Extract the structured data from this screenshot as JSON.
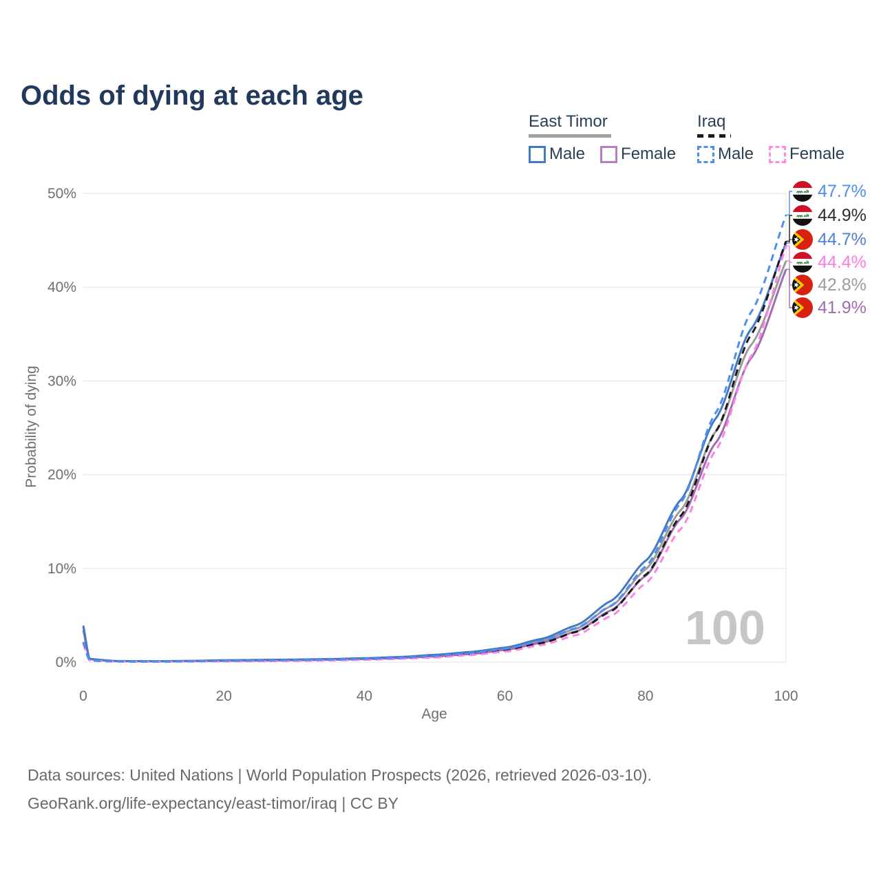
{
  "title": "Odds of dying at each age",
  "watermark_age": "100",
  "legend": {
    "groups": [
      {
        "name": "East Timor",
        "line_style": "solid",
        "underline_color": "#A0A0A0",
        "items": [
          {
            "label": "Male",
            "color": "#4479C4",
            "dash": false
          },
          {
            "label": "Female",
            "color": "#B77FC2",
            "dash": false
          }
        ]
      },
      {
        "name": "Iraq",
        "line_style": "dashed",
        "underline_color": "#1C1C1C",
        "items": [
          {
            "label": "Male",
            "color": "#4E8DF2",
            "dash": true
          },
          {
            "label": "Female",
            "color": "#FF8AE2",
            "dash": true
          }
        ]
      }
    ]
  },
  "yAxis": {
    "title": "Probability of dying",
    "ticks": [
      {
        "label": "0%",
        "value": 0
      },
      {
        "label": "10%",
        "value": 10
      },
      {
        "label": "20%",
        "value": 20
      },
      {
        "label": "30%",
        "value": 30
      },
      {
        "label": "40%",
        "value": 40
      },
      {
        "label": "50%",
        "value": 50
      }
    ]
  },
  "xAxis": {
    "title": "Age",
    "ticks": [
      {
        "label": "0",
        "value": 0
      },
      {
        "label": "20",
        "value": 20
      },
      {
        "label": "40",
        "value": 40
      },
      {
        "label": "60",
        "value": 60
      },
      {
        "label": "80",
        "value": 80
      },
      {
        "label": "100",
        "value": 100
      }
    ]
  },
  "end_labels": [
    {
      "value": "47.7%",
      "flag": "iraq",
      "color": "#4E8DF2",
      "series": "Iraq Male"
    },
    {
      "value": "44.9%",
      "flag": "iraq",
      "color": "#2D2D2D",
      "series": "Iraq Combined"
    },
    {
      "value": "44.7%",
      "flag": "east-timor",
      "color": "#4E81D4",
      "series": "East Timor Male"
    },
    {
      "value": "44.4%",
      "flag": "iraq",
      "color": "#FF7AE2",
      "series": "Iraq Female"
    },
    {
      "value": "42.8%",
      "flag": "east-timor",
      "color": "#9C9C9C",
      "series": "East Timor Combined"
    },
    {
      "value": "41.9%",
      "flag": "east-timor",
      "color": "#A16BB2",
      "series": "East Timor Female"
    }
  ],
  "footer": {
    "line1": "Data sources: United Nations | World Population Prospects (2026, retrieved 2026-03-10).",
    "line2": "GeoRank.org/life-expectancy/east-timor/iraq | CC BY"
  },
  "chart_data": {
    "type": "line",
    "title": "Odds of dying at each age",
    "xlabel": "Age",
    "ylabel": "Probability of dying",
    "unit": "%",
    "xlim": [
      0,
      100
    ],
    "ylim": [
      0,
      50
    ],
    "grid": "horizontal",
    "x": [
      0,
      1,
      5,
      10,
      15,
      20,
      25,
      30,
      35,
      40,
      45,
      50,
      55,
      60,
      65,
      70,
      75,
      80,
      85,
      90,
      95,
      100
    ],
    "series": [
      {
        "name": "East Timor Combined",
        "color": "#9C9C9C",
        "dash": false,
        "end_label": "42.8%",
        "values": [
          3.7,
          0.32,
          0.11,
          0.09,
          0.12,
          0.17,
          0.2,
          0.24,
          0.29,
          0.37,
          0.49,
          0.68,
          0.97,
          1.42,
          2.25,
          3.55,
          5.95,
          9.9,
          16.2,
          24.6,
          33.8,
          42.8
        ]
      },
      {
        "name": "East Timor Female",
        "color": "#A16BB2",
        "dash": false,
        "end_label": "41.9%",
        "values": [
          3.4,
          0.3,
          0.1,
          0.08,
          0.1,
          0.13,
          0.16,
          0.2,
          0.25,
          0.32,
          0.43,
          0.6,
          0.87,
          1.3,
          2.05,
          3.25,
          5.5,
          9.2,
          15.3,
          23.4,
          32.4,
          41.9
        ]
      },
      {
        "name": "East Timor Male",
        "color": "#4479C4",
        "dash": false,
        "end_label": "44.7%",
        "values": [
          3.9,
          0.35,
          0.12,
          0.1,
          0.14,
          0.2,
          0.24,
          0.28,
          0.33,
          0.42,
          0.55,
          0.78,
          1.08,
          1.55,
          2.45,
          3.9,
          6.5,
          10.8,
          17.3,
          26.0,
          35.5,
          44.7
        ]
      },
      {
        "name": "Iraq Combined",
        "color": "#1C1C1C",
        "dash": true,
        "end_label": "44.9%",
        "values": [
          2.05,
          0.17,
          0.065,
          0.055,
          0.075,
          0.11,
          0.14,
          0.18,
          0.23,
          0.3,
          0.41,
          0.58,
          0.85,
          1.27,
          2.0,
          3.2,
          5.4,
          9.3,
          15.6,
          24.6,
          34.9,
          44.9
        ]
      },
      {
        "name": "Iraq Female",
        "color": "#FF82E5",
        "dash": true,
        "end_label": "44.4%",
        "values": [
          1.95,
          0.16,
          0.06,
          0.05,
          0.06,
          0.08,
          0.1,
          0.13,
          0.18,
          0.25,
          0.35,
          0.5,
          0.75,
          1.12,
          1.8,
          2.85,
          4.9,
          8.4,
          14.2,
          22.6,
          32.6,
          44.4
        ]
      },
      {
        "name": "Iraq Male",
        "color": "#4E8DF2",
        "dash": true,
        "end_label": "47.7%",
        "values": [
          2.15,
          0.18,
          0.07,
          0.06,
          0.09,
          0.14,
          0.18,
          0.22,
          0.27,
          0.35,
          0.47,
          0.66,
          0.96,
          1.42,
          2.25,
          3.6,
          6.0,
          10.2,
          17.0,
          26.6,
          37.3,
          47.7
        ]
      }
    ]
  }
}
